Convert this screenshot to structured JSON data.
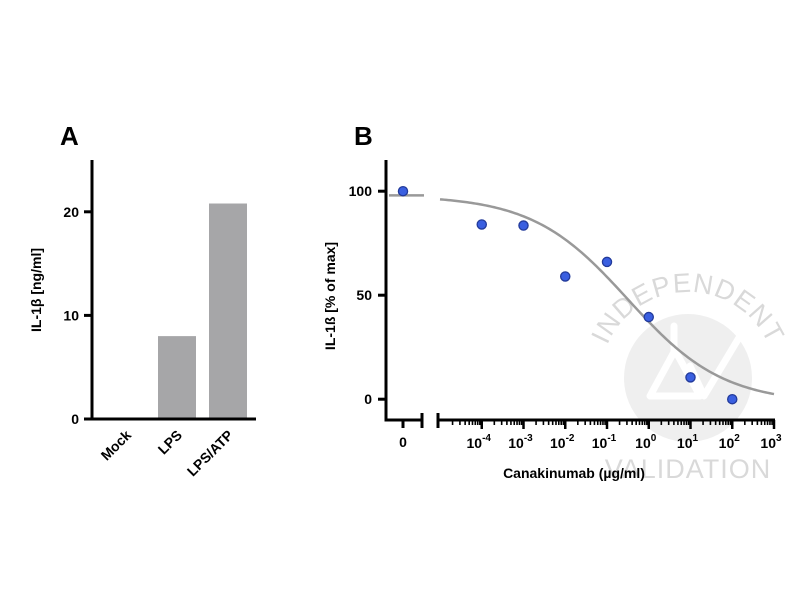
{
  "watermark": {
    "top_text": "INDEPENDENT",
    "bottom_text": "VALIDATION",
    "color": "#d9d9d9",
    "icon": "flask-check-icon"
  },
  "chart_data": [
    {
      "panel": "A",
      "type": "bar",
      "ylabel": "IL-1β [ng/ml]",
      "xlabel": "",
      "categories": [
        "Mock",
        "LPS",
        "LPS/ATP"
      ],
      "values": [
        0.1,
        8,
        20.8
      ],
      "ylim": [
        0,
        25
      ],
      "yticks": [
        "0",
        "10",
        "20"
      ],
      "bar_color": "#a6a6a8",
      "grid": false,
      "legend": "none"
    },
    {
      "panel": "B",
      "type": "scatter",
      "ylabel": "IL-1ß [% of max]",
      "xlabel": "Canakinumab (µg/ml)",
      "x_scale": "log",
      "x_zero_label": "0",
      "xlim": [
        1e-05,
        1000
      ],
      "ylim": [
        -10,
        115
      ],
      "yticks": [
        "0",
        "50",
        "100"
      ],
      "xtick_labels": [
        {
          "base": "10",
          "exp": "-4"
        },
        {
          "base": "10",
          "exp": "-3"
        },
        {
          "base": "10",
          "exp": "-2"
        },
        {
          "base": "10",
          "exp": "-1"
        },
        {
          "base": "10",
          "exp": "0"
        },
        {
          "base": "10",
          "exp": "1"
        },
        {
          "base": "10",
          "exp": "2"
        },
        {
          "base": "10",
          "exp": "3"
        }
      ],
      "zero_dose_value": 100,
      "zero_dose_mean": 98,
      "points": [
        {
          "x": 0.0001,
          "y": 84
        },
        {
          "x": 0.001,
          "y": 83.5
        },
        {
          "x": 0.01,
          "y": 59
        },
        {
          "x": 0.1,
          "y": 66
        },
        {
          "x": 1,
          "y": 39.5
        },
        {
          "x": 10,
          "y": 10.5
        },
        {
          "x": 100,
          "y": 0
        }
      ],
      "fit": {
        "model": "four-parameter logistic",
        "top": 98,
        "bottom": -2,
        "log_ic50": -0.5,
        "hill": 0.38
      },
      "point_color": "#3a5fe0",
      "point_edge": "#223a9a",
      "fit_color": "#999999",
      "grid": false,
      "legend": "none"
    }
  ]
}
